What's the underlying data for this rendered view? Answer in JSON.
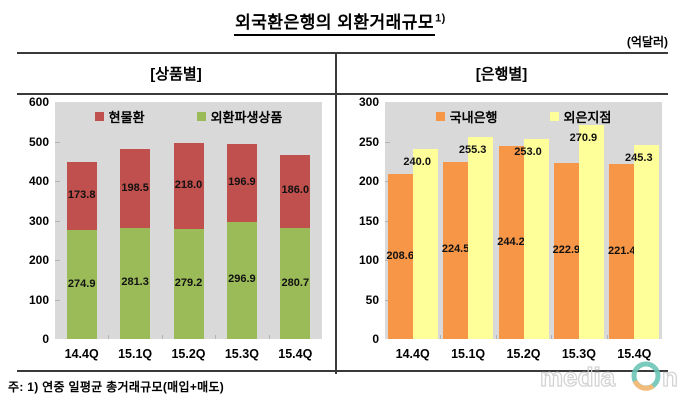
{
  "title": {
    "text": "외국환은행의 외환거래규모",
    "superscript": "1)"
  },
  "unit_label": "(억달러)",
  "footnote": "주: 1) 연중 일평균 총거래규모(매입+매도)",
  "watermark": {
    "part1": "media",
    "part2": "n"
  },
  "chart_data": [
    {
      "type": "bar",
      "stacked": true,
      "panel_title": "[상품별]",
      "categories": [
        "14.4Q",
        "15.1Q",
        "15.2Q",
        "15.3Q",
        "15.4Q"
      ],
      "series": [
        {
          "name": "현물환",
          "color": "#C0504D",
          "values": [
            173.8,
            198.5,
            218.0,
            196.9,
            186.0
          ],
          "label_position": "middle",
          "stack_level": 1
        },
        {
          "name": "외환파생상품",
          "color": "#9BBB59",
          "values": [
            274.9,
            281.3,
            279.2,
            296.9,
            280.7
          ],
          "label_position": "middle",
          "stack_level": 0
        }
      ],
      "ylim": [
        0,
        600
      ],
      "ytick_step": 100,
      "legend_position": "top-inside",
      "plot_background": "#D9D9D9",
      "grid": false
    },
    {
      "type": "bar",
      "stacked": false,
      "panel_title": "[은행별]",
      "categories": [
        "14.4Q",
        "15.1Q",
        "15.2Q",
        "15.3Q",
        "15.4Q"
      ],
      "series": [
        {
          "name": "국내은행",
          "color": "#F79646",
          "values": [
            208.6,
            224.5,
            244.2,
            222.9,
            221.4
          ],
          "label_position": "middle"
        },
        {
          "name": "외은지점",
          "color": "#FFFF99",
          "values": [
            240.0,
            255.3,
            253.0,
            270.9,
            245.3
          ],
          "label_position": "inside-top"
        }
      ],
      "ylim": [
        0,
        300
      ],
      "ytick_step": 50,
      "legend_position": "top-inside",
      "plot_background": "#D9D9D9",
      "grid": false
    }
  ]
}
